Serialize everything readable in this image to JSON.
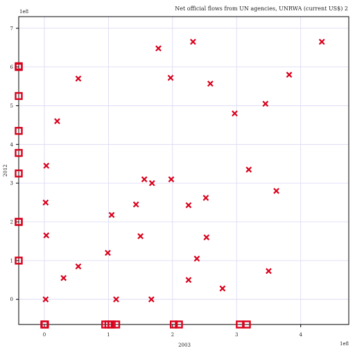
{
  "chart_data": {
    "type": "scatter",
    "title": "Net official flows from UN agencies, UNRWA (current US$) 2",
    "xlabel": "2003",
    "ylabel": "2012",
    "x_multiplier": "1e8",
    "y_multiplier": "1e8",
    "xlim": [
      -0.4,
      4.75
    ],
    "ylim": [
      -0.65,
      7.3
    ],
    "x_ticks": [
      0,
      1,
      2,
      3,
      4
    ],
    "y_ticks": [
      0,
      1,
      2,
      3,
      4,
      5,
      6,
      7
    ],
    "x_tick_labels": [
      "0",
      "1",
      "2",
      "3",
      "4"
    ],
    "y_tick_labels": [
      "0",
      "1",
      "2",
      "3",
      "4",
      "5",
      "6",
      "7"
    ],
    "grid": true,
    "marker_color": "#d9001b",
    "grid_color": "#d8d8f4",
    "points": [
      {
        "x": 0.02,
        "y": 0.0
      },
      {
        "x": 0.03,
        "y": 1.65
      },
      {
        "x": 0.02,
        "y": 2.5
      },
      {
        "x": 0.03,
        "y": 3.45
      },
      {
        "x": 0.2,
        "y": 4.6
      },
      {
        "x": 0.3,
        "y": 0.55
      },
      {
        "x": 0.53,
        "y": 0.85
      },
      {
        "x": 0.53,
        "y": 5.7
      },
      {
        "x": 0.99,
        "y": 1.2
      },
      {
        "x": 1.05,
        "y": 2.18
      },
      {
        "x": 1.12,
        "y": 0.0
      },
      {
        "x": 1.43,
        "y": 2.45
      },
      {
        "x": 1.5,
        "y": 1.63
      },
      {
        "x": 1.56,
        "y": 3.1
      },
      {
        "x": 1.67,
        "y": 0.0
      },
      {
        "x": 1.68,
        "y": 3.0
      },
      {
        "x": 1.78,
        "y": 6.48
      },
      {
        "x": 1.97,
        "y": 5.72
      },
      {
        "x": 1.98,
        "y": 3.1
      },
      {
        "x": 2.25,
        "y": 0.5
      },
      {
        "x": 2.25,
        "y": 2.43
      },
      {
        "x": 2.32,
        "y": 6.65
      },
      {
        "x": 2.38,
        "y": 1.05
      },
      {
        "x": 2.52,
        "y": 2.62
      },
      {
        "x": 2.53,
        "y": 1.6
      },
      {
        "x": 2.59,
        "y": 5.57
      },
      {
        "x": 2.78,
        "y": 0.28
      },
      {
        "x": 2.97,
        "y": 4.8
      },
      {
        "x": 3.19,
        "y": 3.35
      },
      {
        "x": 3.45,
        "y": 5.05
      },
      {
        "x": 3.5,
        "y": 0.73
      },
      {
        "x": 3.62,
        "y": 2.8
      },
      {
        "x": 3.82,
        "y": 5.8
      },
      {
        "x": 4.33,
        "y": 6.65
      }
    ],
    "x_missing_markers_y": [
      1.0,
      2.0,
      2.0,
      3.25,
      3.78,
      4.35,
      5.25,
      6.0,
      6.02
    ],
    "y_missing_markers_x": [
      0.0,
      0.01,
      0.95,
      1.0,
      1.05,
      1.12,
      2.02,
      2.1,
      3.05,
      3.16
    ]
  }
}
